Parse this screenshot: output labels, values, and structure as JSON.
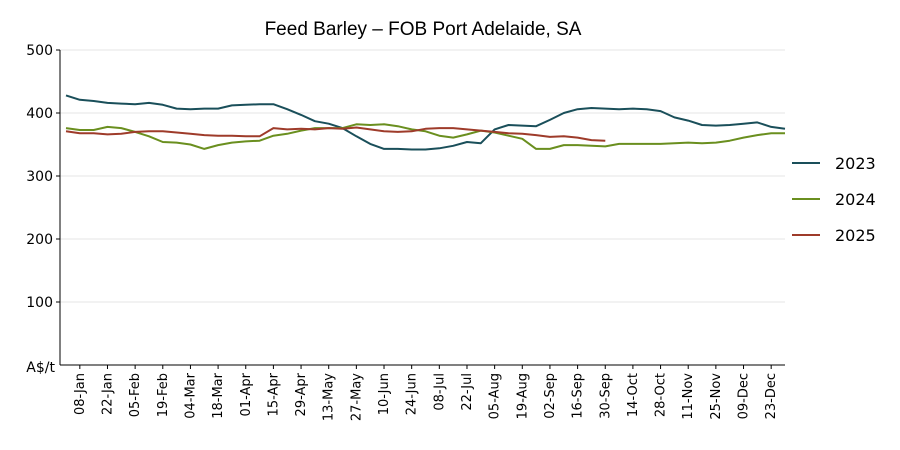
{
  "chart_data": {
    "type": "line",
    "title": "Feed Barley – FOB Port Adelaide, SA",
    "ylabel": "A$/t",
    "xlabel": "",
    "ylim": [
      0,
      500
    ],
    "yticks": [
      100,
      200,
      300,
      400,
      500
    ],
    "grid": true,
    "legend_position": "right",
    "x_ticks": [
      "08-Jan",
      "22-Jan",
      "05-Feb",
      "19-Feb",
      "04-Mar",
      "18-Mar",
      "01-Apr",
      "15-Apr",
      "29-Apr",
      "13-May",
      "27-May",
      "10-Jun",
      "24-Jun",
      "08-Jul",
      "22-Jul",
      "05-Aug",
      "19-Aug",
      "02-Sep",
      "16-Sep",
      "30-Sep",
      "14-Oct",
      "28-Oct",
      "11-Nov",
      "25-Nov",
      "09-Dec",
      "23-Dec"
    ],
    "week_start": "01-Jan",
    "series": [
      {
        "name": "2023",
        "color": "#1a4f5a",
        "values": [
          428,
          421,
          419,
          416,
          415,
          414,
          416,
          413,
          407,
          406,
          407,
          407,
          412,
          413,
          414,
          414,
          406,
          397,
          387,
          383,
          376,
          363,
          351,
          343,
          343,
          342,
          342,
          344,
          348,
          354,
          352,
          374,
          381,
          380,
          379,
          389,
          400,
          406,
          408,
          407,
          406,
          407,
          406,
          403,
          393,
          388,
          381,
          380,
          381,
          383,
          385,
          378,
          375
        ]
      },
      {
        "name": "2024",
        "color": "#6a8f1f",
        "values": [
          376,
          373,
          373,
          378,
          376,
          370,
          363,
          354,
          353,
          350,
          343,
          349,
          353,
          355,
          356,
          364,
          367,
          372,
          376,
          376,
          376,
          382,
          381,
          382,
          379,
          374,
          371,
          364,
          361,
          366,
          372,
          369,
          364,
          359,
          343,
          343,
          349,
          349,
          348,
          347,
          351,
          351,
          351,
          351,
          352,
          353,
          352,
          353,
          356,
          361,
          365,
          368,
          368
        ]
      },
      {
        "name": "2025",
        "color": "#9e3b2a",
        "values": [
          371,
          368,
          368,
          366,
          367,
          370,
          371,
          371,
          369,
          367,
          365,
          364,
          364,
          363,
          363,
          376,
          374,
          375,
          374,
          376,
          375,
          377,
          374,
          371,
          370,
          371,
          375,
          376,
          376,
          374,
          372,
          370,
          368,
          367,
          365,
          362,
          363,
          361,
          357,
          356
        ]
      }
    ]
  }
}
